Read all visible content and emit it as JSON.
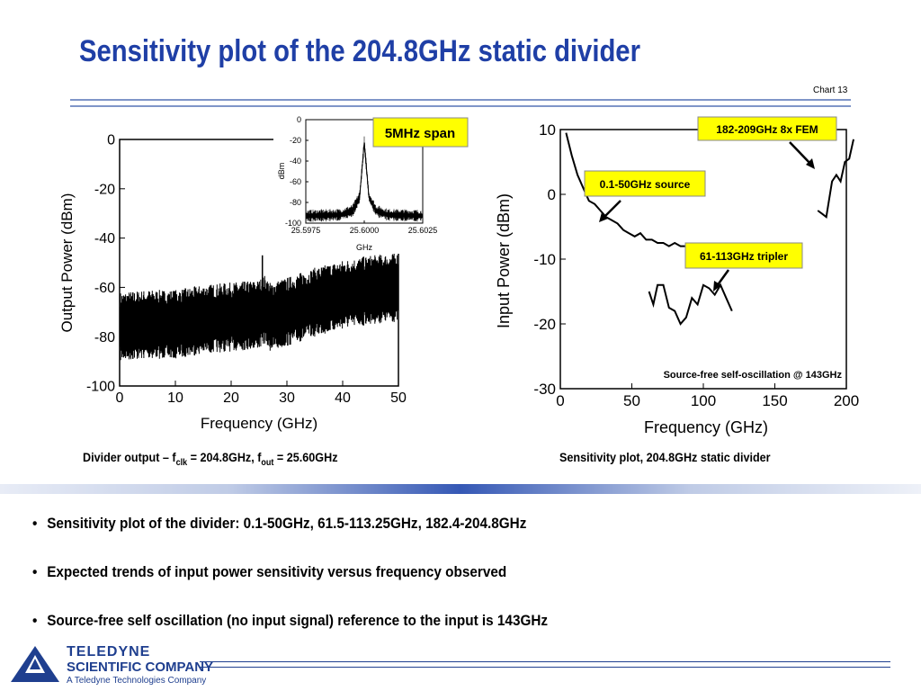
{
  "slide": {
    "title": "Sensitivity plot of the 204.8GHz static divider",
    "chart_number": "Chart 13"
  },
  "captions": {
    "left_prefix": "Divider output – f",
    "left_clk_sub": "clk",
    "left_mid": " = 204.8GHz, f",
    "left_out_sub": "out",
    "left_suffix": " = 25.60GHz",
    "right": "Sensitivity plot, 204.8GHz static divider"
  },
  "annotations": {
    "span": "5MHz span",
    "fem": "182-209GHz 8x FEM",
    "source": "0.1-50GHz source",
    "tripler": "61-113GHz tripler",
    "self_osc": "Source-free self-oscillation @ 143GHz"
  },
  "colors": {
    "title": "#1f3fa6",
    "callout_fill": "#ffff00",
    "logo": "#1f3f8f",
    "accent_band": "#3558b5"
  },
  "chart_data": [
    {
      "type": "line",
      "title": "",
      "xlabel": "Frequency (GHz)",
      "ylabel": "Output Power (dBm)",
      "xlim": [
        0,
        50
      ],
      "ylim": [
        -100,
        0
      ],
      "xticks": [
        "0",
        "10",
        "20",
        "30",
        "40",
        "50"
      ],
      "yticks": [
        "0",
        "-20",
        "-40",
        "-60",
        "-80",
        "-100"
      ],
      "series": [
        {
          "x": [
            0,
            5,
            10,
            15,
            20,
            25,
            26,
            27,
            30,
            35,
            40,
            45,
            50
          ],
          "y": [
            -76,
            -75,
            -75,
            -73,
            -72,
            -71,
            -69,
            -72,
            -70,
            -66,
            -63,
            -61,
            -60
          ]
        }
      ],
      "spike": {
        "x": 25.6,
        "y": -47
      }
    },
    {
      "type": "line",
      "title": "",
      "xlabel": "GHz",
      "ylabel": "dBm",
      "xlim": [
        25.5975,
        25.6025
      ],
      "ylim": [
        -100,
        0
      ],
      "xticks": [
        "25.5975",
        "25.6000",
        "25.6025"
      ],
      "yticks": [
        "0",
        "-20",
        "-40",
        "-60",
        "-80",
        "-100"
      ],
      "series": [
        {
          "x": [
            25.5975,
            25.599,
            25.5995,
            25.5998,
            25.6,
            25.6002,
            25.6005,
            25.601,
            25.6025
          ],
          "y": [
            -93,
            -92,
            -88,
            -75,
            -22,
            -75,
            -88,
            -92,
            -93
          ]
        }
      ]
    },
    {
      "type": "line",
      "title": "",
      "xlabel": "Frequency (GHz)",
      "ylabel": "Input Power (dBm)",
      "xlim": [
        0,
        200
      ],
      "ylim": [
        -30,
        10
      ],
      "xticks": [
        "0",
        "50",
        "100",
        "150",
        "200"
      ],
      "yticks": [
        "10",
        "0",
        "-10",
        "-20",
        "-30"
      ],
      "series": [
        {
          "x": [
            4,
            8,
            12,
            16,
            20,
            24,
            28,
            32,
            36,
            40,
            44,
            48,
            52,
            56,
            60,
            64,
            68,
            72,
            76,
            80,
            84,
            88,
            92,
            96,
            100
          ],
          "y": [
            9.5,
            6,
            3,
            1,
            -1,
            -1.5,
            -2.5,
            -3.5,
            -4,
            -4.5,
            -5.5,
            -6,
            -6.5,
            -6,
            -7,
            -7,
            -7.5,
            -7.5,
            -8,
            -7.5,
            -8,
            -8,
            -8.2,
            -8.5,
            -8
          ]
        },
        {
          "x": [
            62,
            65,
            68,
            72,
            76,
            80,
            84,
            88,
            92,
            96,
            100,
            104,
            108,
            112,
            116,
            120
          ],
          "y": [
            -15,
            -17,
            -14,
            -14,
            -17.5,
            -18,
            -20,
            -19,
            -16,
            -17,
            -14,
            -14.5,
            -15.5,
            -14,
            -16,
            -18
          ]
        },
        {
          "x": [
            180,
            183,
            186,
            190,
            193,
            196,
            199,
            202,
            205
          ],
          "y": [
            -2.5,
            -3,
            -3.5,
            2,
            3,
            2,
            5,
            5.5,
            8.5
          ]
        }
      ],
      "annotation": "Source-free self-oscillation @ 143GHz"
    }
  ],
  "bullets": [
    "Sensitivity plot of the divider:  0.1-50GHz, 61.5-113.25GHz, 182.4-204.8GHz",
    "Expected trends of input power sensitivity versus frequency observed",
    "Source-free self oscillation (no input signal) reference to the input is 143GHz"
  ],
  "footer": {
    "company_line1": "TELEDYNE",
    "company_line2": "SCIENTIFIC COMPANY",
    "company_line3": "A Teledyne Technologies Company"
  }
}
